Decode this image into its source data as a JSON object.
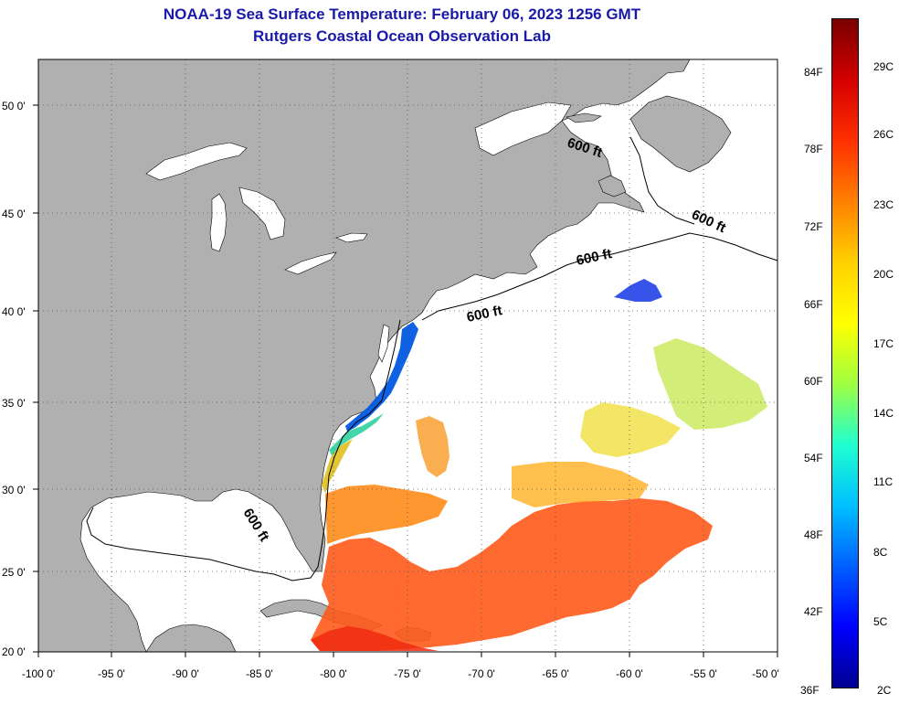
{
  "title": {
    "line1": "NOAA-19 Sea Surface Temperature:  February 06, 2023 1256 GMT",
    "line2": "Rutgers Coastal Ocean Observation Lab"
  },
  "axes": {
    "longitude_labels": [
      "-100 0'",
      "-95 0'",
      "-90 0'",
      "-85 0'",
      "-80 0'",
      "-75 0'",
      "-70 0'",
      "-65 0'",
      "-60 0'",
      "-55 0'",
      "-50 0'"
    ],
    "latitude_labels": [
      "50 0'",
      "45 0'",
      "40 0'",
      "35 0'",
      "30 0'",
      "25 0'",
      "20 0'"
    ],
    "lon_range": [
      -100,
      -50
    ],
    "lat_range": [
      20,
      52.5
    ],
    "grid": "dotted"
  },
  "contour_labels": [
    "600 ft",
    "600 ft",
    "600 ft",
    "600 ft",
    "600 ft"
  ],
  "colorbar": {
    "fahrenheit_labels": [
      "84F",
      "78F",
      "72F",
      "66F",
      "60F",
      "54F",
      "48F",
      "42F",
      "36F"
    ],
    "celsius_labels": [
      "29C",
      "26C",
      "23C",
      "20C",
      "17C",
      "14C",
      "11C",
      "8C",
      "5C",
      "2C"
    ],
    "colors": [
      "#7a0000",
      "#d40000",
      "#ff3000",
      "#ff8000",
      "#ffd000",
      "#ffff00",
      "#a0ff40",
      "#20ffd0",
      "#00c0ff",
      "#0060ff",
      "#0000ff",
      "#000090"
    ]
  },
  "colors": {
    "land": "#b0b0b0",
    "ocean": "#ffffff",
    "title": "#1a1aa8"
  }
}
